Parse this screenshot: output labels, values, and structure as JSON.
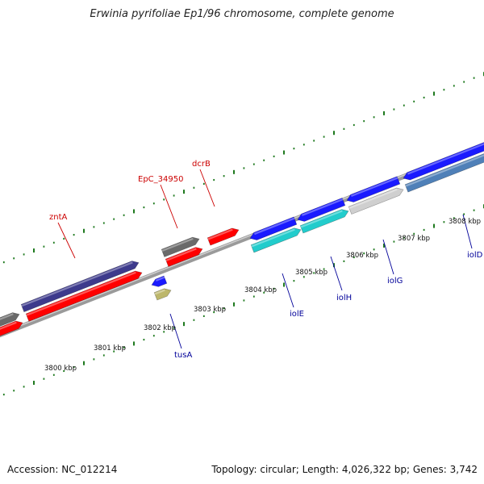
{
  "title": "Erwinia pyrifoliae Ep1/96 chromosome, complete genome",
  "footer": {
    "accession": "Accession: NC_012214",
    "summary": "Topology: circular; Length: 4,026,322 bp; Genes: 3,742"
  },
  "colors": {
    "red": "#ff0000",
    "blue": "#1a1aff",
    "navy": "#3d3a8c",
    "gray": "#6a6a6a",
    "lightgray": "#cfcfcf",
    "cyan": "#22cccc",
    "olive": "#bdb76b",
    "steel": "#4f80b8",
    "tick": "#1f7a1f",
    "red_label": "#cc0000",
    "blue_label": "#000099"
  },
  "kbp_labels": [
    "3800 kbp",
    "3801 kbp",
    "3802 kbp",
    "3803 kbp",
    "3804 kbp",
    "3805 kbp",
    "3806 kbp",
    "3807 kbp",
    "3808 kbp"
  ],
  "gene_labels": {
    "red": [
      "zntA",
      "EpC_34950",
      "dcrB"
    ],
    "blue": [
      "tusA",
      "iolE",
      "iolH",
      "iolG",
      "iolD"
    ]
  }
}
